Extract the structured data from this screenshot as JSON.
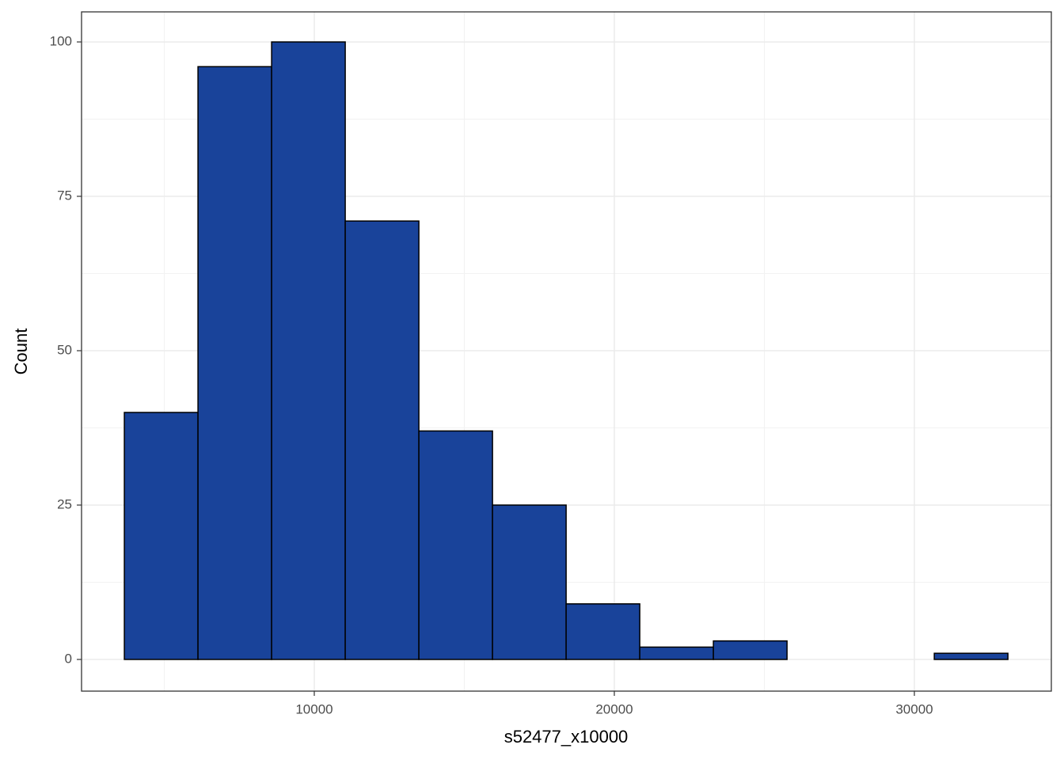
{
  "chart_data": {
    "type": "histogram",
    "x_label": "s52477_x10000",
    "y_label": "Count",
    "bins": [
      3670,
      6124,
      8578,
      11032,
      13486,
      15940,
      18394,
      20848,
      23302,
      25756,
      28210,
      30664,
      33118
    ],
    "values": [
      40,
      96,
      100,
      71,
      37,
      25,
      9,
      2,
      3,
      0,
      0,
      1
    ],
    "color": "#19439a",
    "edge_color": "#000000",
    "xlim": [
      2243,
      34565
    ],
    "ylim": [
      -5.13,
      104.87
    ],
    "xticks": [
      10000,
      20000,
      30000
    ],
    "yticks": [
      0,
      25,
      50,
      75,
      100
    ],
    "xminor": [
      5000,
      15000,
      25000
    ],
    "yminor": [
      12.5,
      37.5,
      62.5,
      87.5
    ],
    "grid": true
  }
}
